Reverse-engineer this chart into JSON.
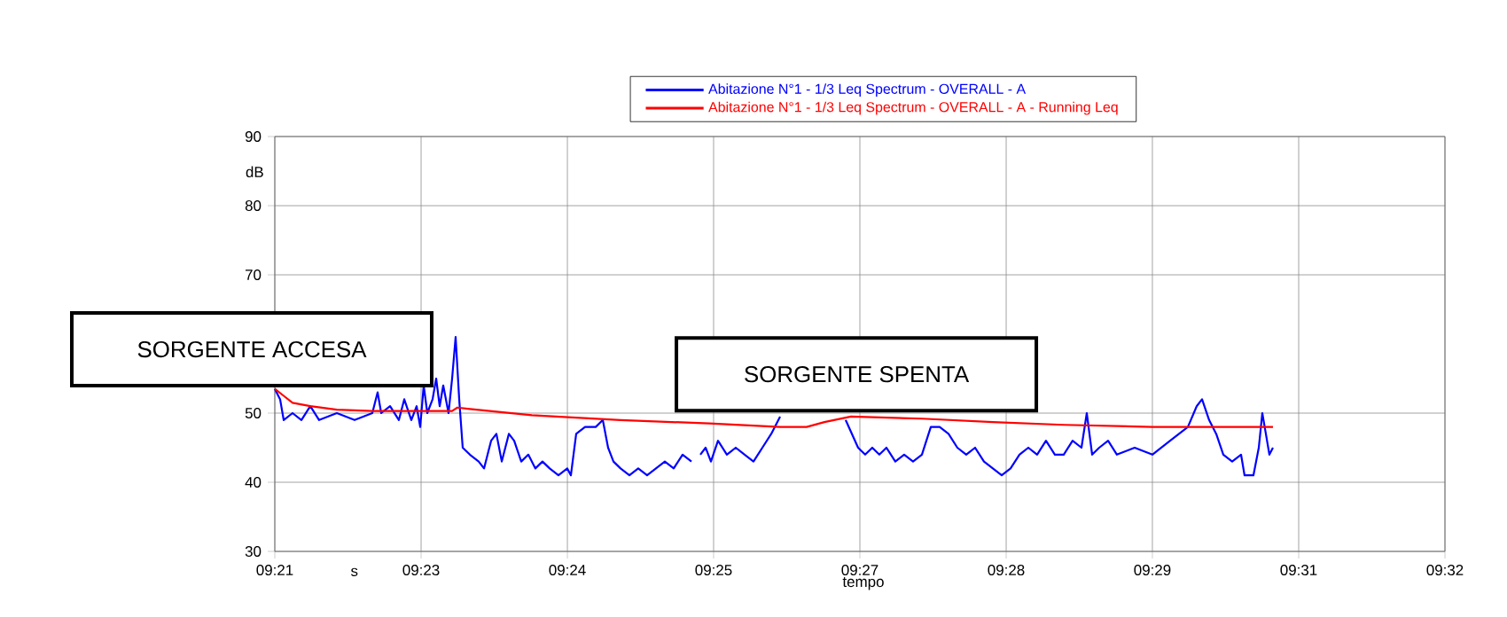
{
  "chart_data": {
    "type": "line",
    "xlabel": "tempo",
    "ylabel": "dB",
    "annotations": [
      "SORGENTE ACCESA",
      "SORGENTE SPENTA",
      "s"
    ],
    "xlim": [
      9.35333,
      9.53667
    ],
    "ylim": [
      30,
      90
    ],
    "xticks": [
      {
        "value": 9.35333,
        "label": "09:21"
      },
      {
        "value": 9.37625,
        "label": "09:23"
      },
      {
        "value": 9.39917,
        "label": "09:24"
      },
      {
        "value": 9.42208,
        "label": "09:25"
      },
      {
        "value": 9.445,
        "label": "09:27"
      },
      {
        "value": 9.46792,
        "label": "09:28"
      },
      {
        "value": 9.49083,
        "label": "09:29"
      },
      {
        "value": 9.51375,
        "label": "09:31"
      },
      {
        "value": 9.53667,
        "label": "09:32"
      }
    ],
    "yticks": [
      30,
      40,
      50,
      70,
      80,
      90
    ],
    "grid": true,
    "legend": "top",
    "marker": "none",
    "line_style": "solid",
    "series": [
      {
        "name": "Abitazione N°1 - 1/3 Leq Spectrum - OVERALL - A",
        "color": "#0000ff",
        "x": [
          9.35333,
          9.35416,
          9.35472,
          9.35611,
          9.3575,
          9.35889,
          9.36027,
          9.36305,
          9.36583,
          9.36861,
          9.36944,
          9.37,
          9.37139,
          9.37277,
          9.37361,
          9.37472,
          9.37555,
          9.37611,
          9.37666,
          9.37722,
          9.37805,
          9.37861,
          9.37916,
          9.37972,
          9.38055,
          9.38111,
          9.38166,
          9.38222,
          9.38277,
          9.38389,
          9.38527,
          9.38611,
          9.38722,
          9.38805,
          9.38889,
          9.39,
          9.39083,
          9.39194,
          9.39305,
          9.39416,
          9.39527,
          9.39639,
          9.39777,
          9.39916,
          9.39972,
          9.40055,
          9.40194,
          9.40361,
          9.40472,
          9.40555,
          9.40639,
          9.4075,
          9.40889,
          9.41027,
          9.41166,
          9.41305,
          9.41444,
          9.41583,
          9.41722,
          9.41861,
          9.41944,
          9.42,
          9.42083,
          9.42166,
          9.42277,
          9.42416,
          9.42555,
          9.42694,
          9.42833,
          9.42972,
          9.43111,
          9.4325,
          9.43389,
          9.43527,
          9.43805,
          9.44083,
          9.44277,
          9.44472,
          9.44583,
          9.44694,
          9.44805,
          9.44916,
          9.45055,
          9.45194,
          9.45333,
          9.45472,
          9.45611,
          9.4575,
          9.45889,
          9.46027,
          9.46166,
          9.46305,
          9.46444,
          9.46583,
          9.46722,
          9.46861,
          9.47,
          9.47139,
          9.47277,
          9.47416,
          9.47555,
          9.47694,
          9.47833,
          9.47972,
          9.48055,
          9.48139,
          9.4825,
          9.48389,
          9.48527,
          9.48805,
          9.49083,
          9.49361,
          9.495,
          9.49639,
          9.49777,
          9.49861,
          9.49972,
          9.50083,
          9.50194,
          9.50333,
          9.50472,
          9.50527,
          9.50666,
          9.5075,
          9.50805,
          9.50861,
          9.50916,
          9.50972
        ],
        "values": [
          53.5,
          52,
          49,
          50,
          49,
          51,
          49,
          50,
          49,
          50,
          53,
          50,
          51,
          49,
          52,
          49,
          51,
          48,
          54,
          50,
          52,
          55,
          51,
          54,
          50,
          55,
          61,
          52,
          45,
          44,
          43,
          42,
          46,
          47,
          43,
          47,
          46,
          43,
          44,
          42,
          43,
          42,
          41,
          42,
          41,
          47,
          48,
          48,
          49,
          45,
          43,
          42,
          41,
          42,
          41,
          42,
          43,
          42,
          44,
          43,
          null,
          44,
          45,
          43,
          46,
          44,
          45,
          44,
          43,
          45,
          47,
          49.5,
          null,
          null,
          null,
          null,
          49,
          45,
          44,
          45,
          44,
          45,
          43,
          44,
          43,
          44,
          48,
          48,
          47,
          45,
          44,
          45,
          43,
          42,
          41,
          42,
          44,
          45,
          44,
          46,
          44,
          44,
          46,
          45,
          50,
          44,
          45,
          46,
          44,
          45,
          44,
          46,
          47,
          48,
          51,
          52,
          49,
          47,
          44,
          43,
          44,
          41,
          41,
          45,
          50,
          47,
          44,
          45
        ]
      },
      {
        "name": "Abitazione N°1 - 1/3 Leq Spectrum - OVERALL - A - Running Leq",
        "color": "#ff0000",
        "x": [
          9.35333,
          9.35472,
          9.35611,
          9.35889,
          9.36305,
          9.36861,
          9.38111,
          9.38194,
          9.38389,
          9.39361,
          9.4075,
          9.42139,
          9.4325,
          9.43666,
          9.43944,
          9.44361,
          9.45472,
          9.46583,
          9.47694,
          9.49083,
          9.50972
        ],
        "values": [
          53.5,
          52.5,
          51.5,
          51,
          50.5,
          50.3,
          50.3,
          50.8,
          50.6,
          49.7,
          49,
          48.5,
          48,
          48,
          48.7,
          49.5,
          49.2,
          48.7,
          48.3,
          48,
          48
        ]
      }
    ]
  }
}
